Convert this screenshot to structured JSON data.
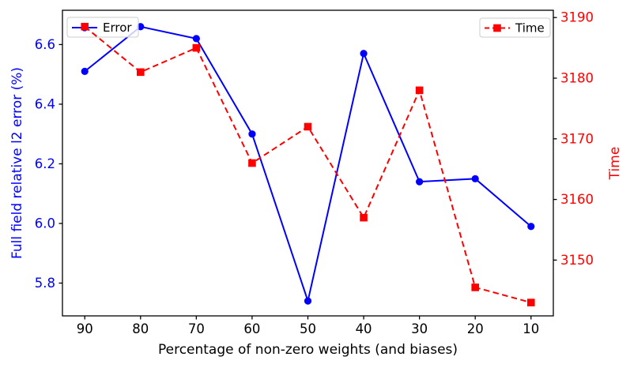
{
  "chart_data": {
    "type": "line",
    "title": "",
    "x": [
      90,
      80,
      70,
      60,
      50,
      40,
      30,
      20,
      10
    ],
    "series": [
      {
        "name": "Error",
        "axis": "left",
        "color": "#0000ff",
        "line_style": "solid",
        "marker": "circle",
        "values": [
          6.51,
          6.66,
          6.62,
          6.3,
          5.74,
          6.57,
          6.14,
          6.15,
          5.99
        ]
      },
      {
        "name": "Time",
        "axis": "right",
        "color": "#ff0000",
        "line_style": "dashed",
        "marker": "square",
        "values": [
          3188.5,
          3181,
          3185,
          3166,
          3172,
          3157,
          3178,
          3145.5,
          3143
        ]
      }
    ],
    "xlabel": "Percentage of non-zero weights (and biases)",
    "ylabel_left": "Full field relative l2 error (%)",
    "ylabel_right": "Time",
    "x_ticks": [
      90,
      80,
      70,
      60,
      50,
      40,
      30,
      20,
      10
    ],
    "y_ticks_left": [
      5.8,
      6.0,
      6.2,
      6.4,
      6.6
    ],
    "y_ticks_right": [
      3150,
      3160,
      3170,
      3180,
      3190
    ],
    "xlim": [
      94,
      6
    ],
    "x_inverted": true,
    "ylim_left": [
      5.69,
      6.715
    ],
    "ylim_right": [
      3140.8,
      3191.2
    ],
    "grid": false,
    "legends": [
      {
        "label": "Error",
        "position": "top-left"
      },
      {
        "label": "Time",
        "position": "top-right"
      }
    ],
    "colors": {
      "left_axis_text": "#0000ff",
      "right_axis_text": "#ff0000",
      "x_axis_text": "#000000",
      "frame": "#000000",
      "legend_border": "#cccccc",
      "legend_bg": "rgba(255,255,255,0.8)"
    }
  }
}
